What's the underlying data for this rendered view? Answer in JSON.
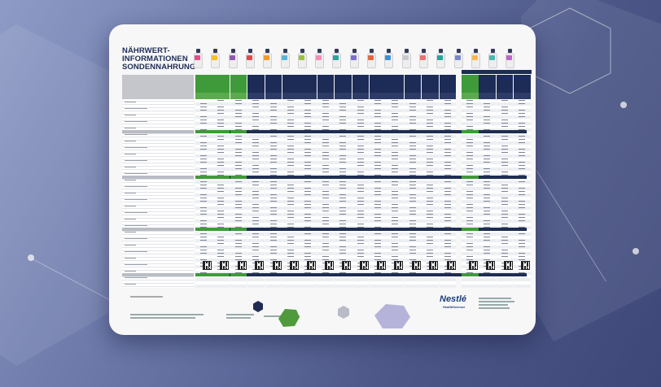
{
  "document": {
    "title_lines": [
      "NÄHRWERT-",
      "INFORMATIONEN",
      "SONDENNAHRUNG"
    ],
    "brand_logo": "Nestlé",
    "brand_sub": "HealthScience",
    "colors": {
      "navy": "#1d2b57",
      "green": "#3f9a3a",
      "header_gray": "#c4c6cc",
      "band_navy": "#1f2d52"
    }
  }
}
